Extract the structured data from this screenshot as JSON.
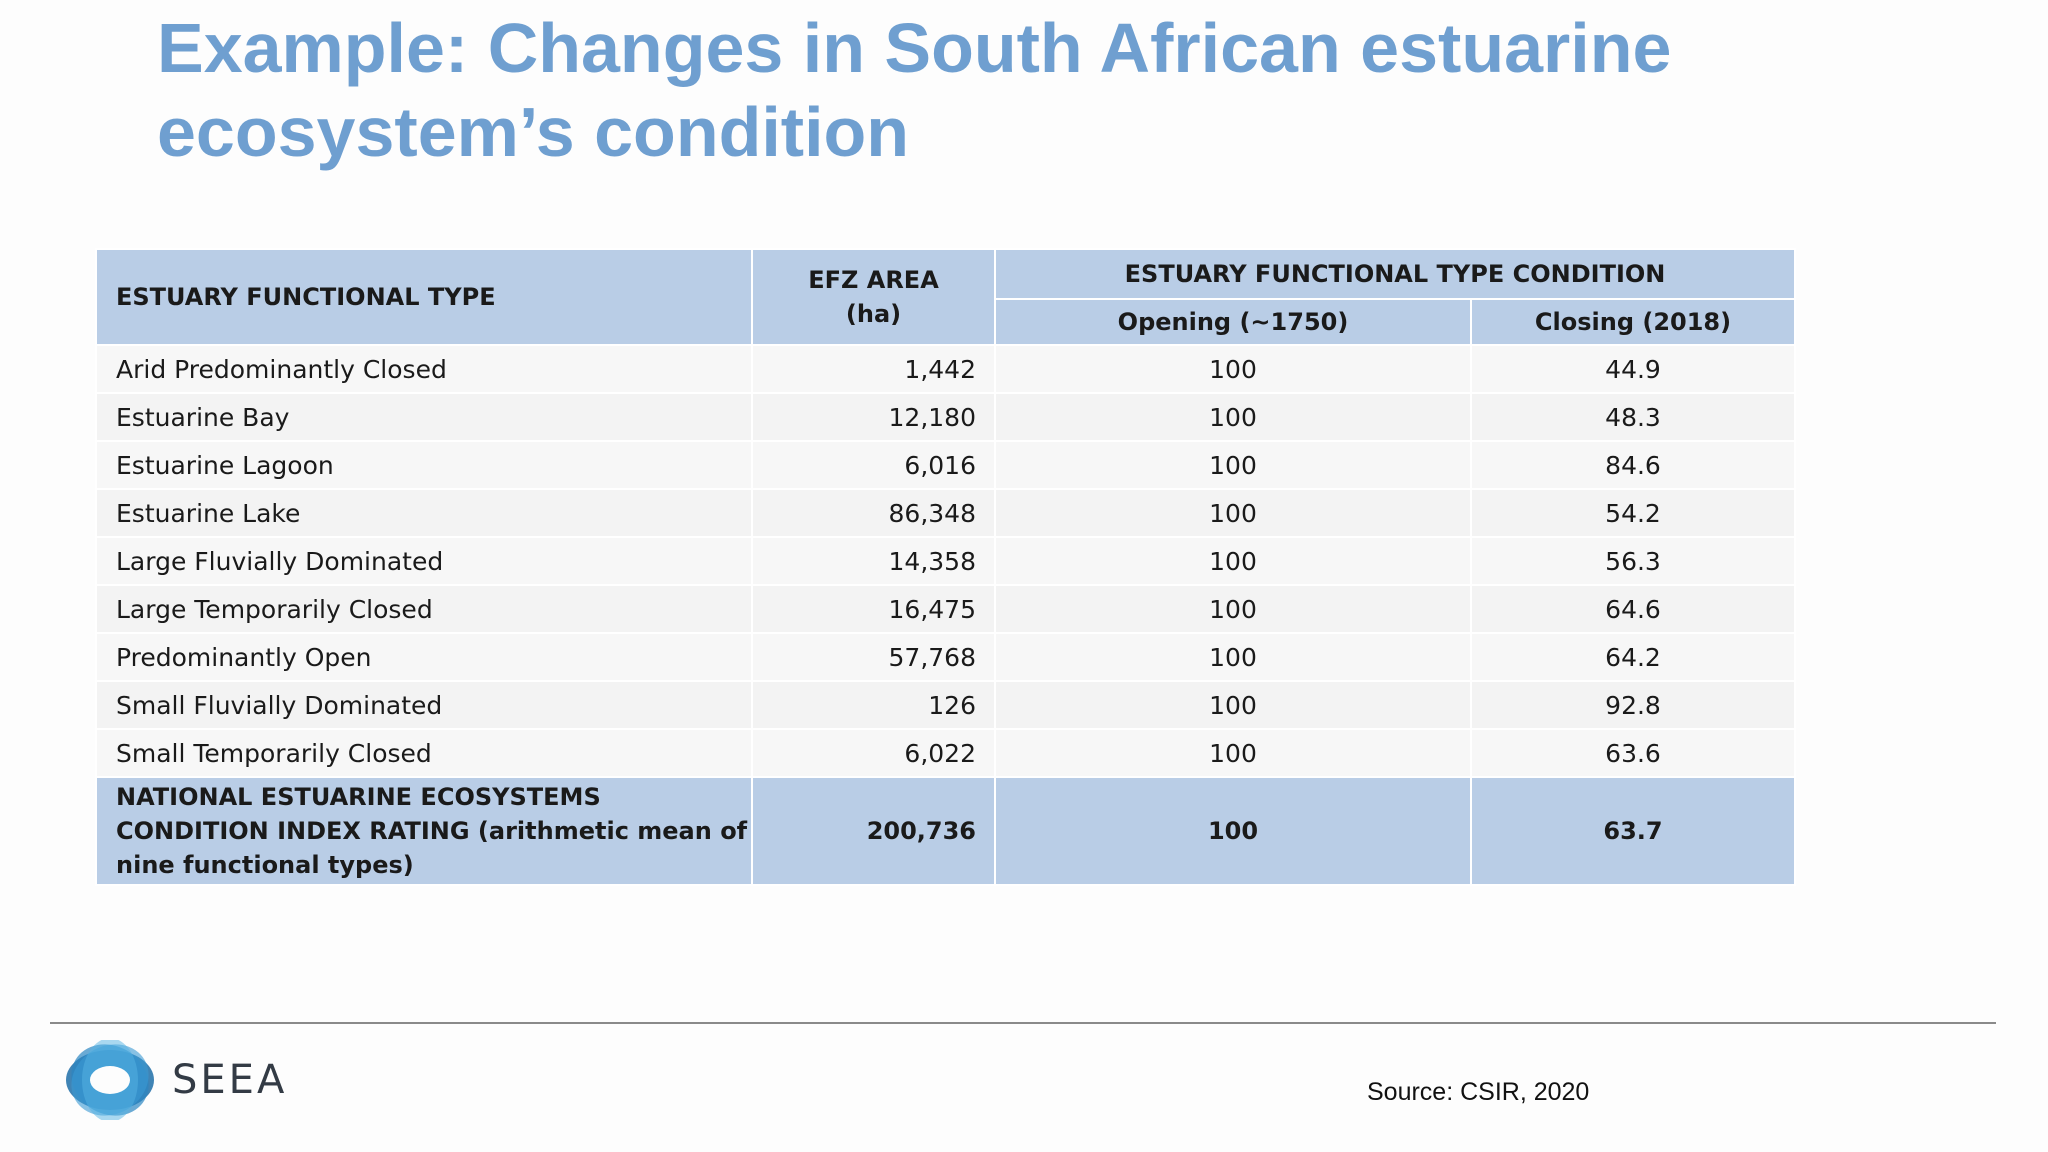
{
  "slide": {
    "title": "Example: Changes in South African estuarine ecosystem’s condition",
    "source": "Source: CSIR, 2020",
    "accent_color": "#6f9fd0",
    "header_color": "#b9cde6"
  },
  "table": {
    "headers": {
      "type": "ESTUARY FUNCTIONAL TYPE",
      "area_line1": "EFZ AREA",
      "area_line2": "(ha)",
      "condition": "ESTUARY FUNCTIONAL TYPE CONDITION",
      "opening": "Opening (~1750)",
      "closing": "Closing (2018)"
    },
    "rows": [
      {
        "type": "Arid Predominantly Closed",
        "area": "1,442",
        "opening": "100",
        "closing": "44.9"
      },
      {
        "type": "Estuarine Bay",
        "area": "12,180",
        "opening": "100",
        "closing": "48.3"
      },
      {
        "type": "Estuarine Lagoon",
        "area": "6,016",
        "opening": "100",
        "closing": "84.6"
      },
      {
        "type": "Estuarine Lake",
        "area": "86,348",
        "opening": "100",
        "closing": "54.2"
      },
      {
        "type": "Large Fluvially Dominated",
        "area": "14,358",
        "opening": "100",
        "closing": "56.3"
      },
      {
        "type": "Large Temporarily Closed",
        "area": "16,475",
        "opening": "100",
        "closing": "64.6"
      },
      {
        "type": "Predominantly Open",
        "area": "57,768",
        "opening": "100",
        "closing": "64.2"
      },
      {
        "type": "Small Fluvially Dominated",
        "area": "126",
        "opening": "100",
        "closing": "92.8"
      },
      {
        "type": "Small Temporarily Closed",
        "area": "6,022",
        "opening": "100",
        "closing": "63.6"
      }
    ],
    "total": {
      "type": "NATIONAL ESTUARINE ECOSYSTEMS CONDITION INDEX RATING (arithmetic mean of nine functional types)",
      "area": "200,736",
      "opening": "100",
      "closing": "63.7"
    }
  },
  "logo": {
    "text": "SEEA",
    "icon": "seea-logo-icon"
  }
}
